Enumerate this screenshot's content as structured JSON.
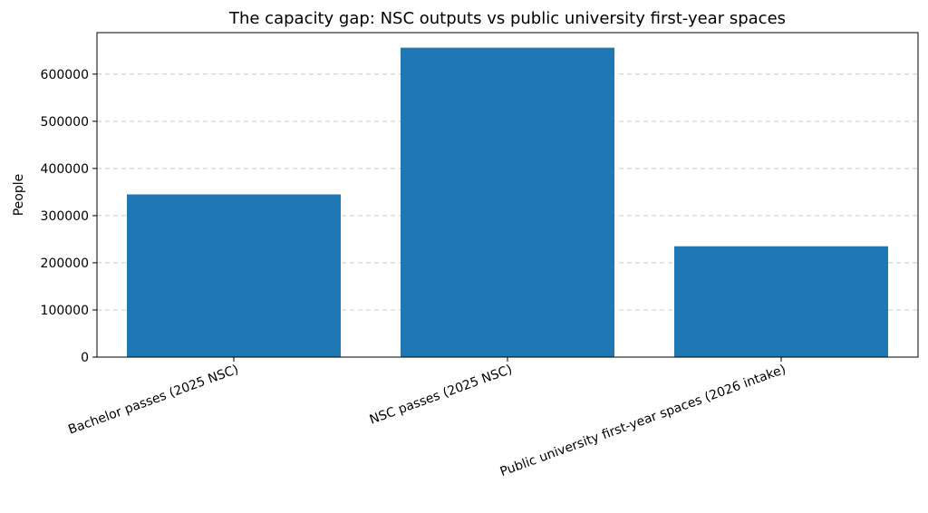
{
  "chart_data": {
    "type": "bar",
    "title": "The capacity gap: NSC outputs vs public university first-year spaces",
    "xlabel": "",
    "ylabel": "People",
    "categories": [
      "Bachelor passes (2025 NSC)",
      "NSC passes (2025 NSC)",
      "Public university first-year spaces (2026 intake)"
    ],
    "values": [
      345000,
      656000,
      235000
    ],
    "ylim": [
      0,
      688000
    ],
    "yticks": [
      0,
      100000,
      200000,
      300000,
      400000,
      500000,
      600000
    ],
    "grid": "y-dashed",
    "legend": "none",
    "bar_color": "#1f77b4"
  }
}
